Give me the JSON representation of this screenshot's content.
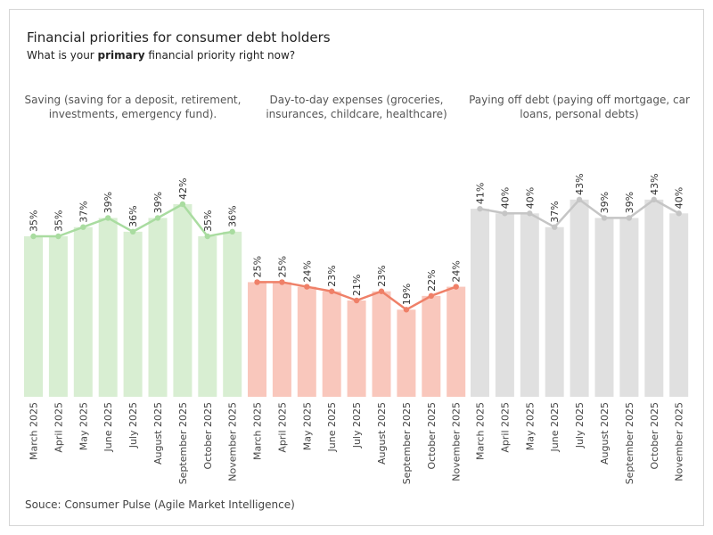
{
  "title": "Financial priorities for consumer debt holders",
  "subtitle": {
    "before": "What is your ",
    "bold": "primary",
    "after": " financial priority right now?"
  },
  "source": "Souce: Consumer Pulse (Agile Market Intelligence)",
  "chart_data": {
    "type": "bar",
    "ylim": [
      0,
      55
    ],
    "categories": [
      "March 2025",
      "April 2025",
      "May 2025",
      "June 2025",
      "July 2025",
      "August 2025",
      "September 2025",
      "October 2025",
      "November 2025"
    ],
    "value_suffix": "%",
    "series": [
      {
        "name": "Saving (saving for a deposit, retirement, investments, emergency fund).",
        "bar_color": "#d8eed2",
        "line_color": "#a9dca0",
        "values": [
          35,
          35,
          37,
          39,
          36,
          39,
          42,
          35,
          36
        ]
      },
      {
        "name": "Day-to-day expenses (groceries, insurances, childcare, healthcare)",
        "bar_color": "#f9c7bc",
        "line_color": "#ef8068",
        "values": [
          25,
          25,
          24,
          23,
          21,
          23,
          19,
          22,
          24
        ]
      },
      {
        "name": "Paying off debt (paying off mortgage, car loans, personal debts)",
        "bar_color": "#e0e0e0",
        "line_color": "#c5c5c5",
        "values": [
          41,
          40,
          40,
          37,
          43,
          39,
          39,
          43,
          40
        ]
      }
    ]
  }
}
